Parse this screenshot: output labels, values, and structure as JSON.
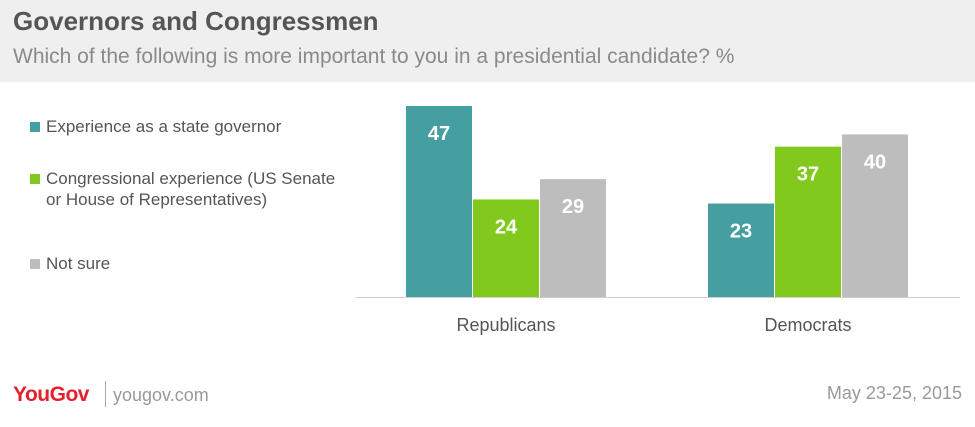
{
  "header": {
    "title": "Governors and Congressmen",
    "subtitle": "Which of the following is more important to you in a presidential candidate? %"
  },
  "legend": {
    "items": [
      {
        "label": "Experience as a state governor",
        "color": "#459ea0"
      },
      {
        "label": "Congressional experience (US Senate or House of Representatives)",
        "color": "#82c91e"
      },
      {
        "label": "Not sure",
        "color": "#bdbdbd"
      }
    ]
  },
  "chart_data": {
    "type": "bar",
    "categories": [
      "Republicans",
      "Democrats"
    ],
    "series": [
      {
        "name": "Experience as a state governor",
        "values": [
          47,
          23
        ],
        "color": "#459ea0"
      },
      {
        "name": "Congressional experience (US Senate or House of Representatives)",
        "values": [
          24,
          37
        ],
        "color": "#82c91e"
      },
      {
        "name": "Not sure",
        "values": [
          29,
          40
        ],
        "color": "#bdbdbd"
      }
    ],
    "ylim": [
      0,
      50
    ],
    "grid": false,
    "legend_position": "left"
  },
  "footer": {
    "brand": "YouGov",
    "site": "yougov.com",
    "date": "May 23-25, 2015"
  }
}
